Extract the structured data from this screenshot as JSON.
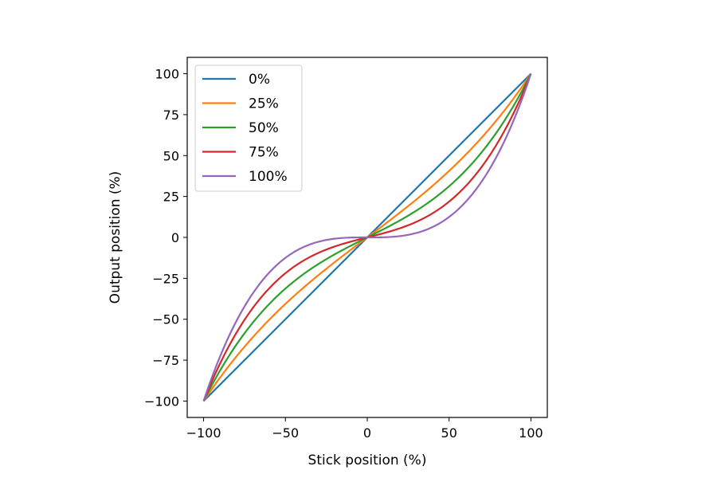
{
  "chart_data": {
    "type": "line",
    "xlabel": "Stick position (%)",
    "ylabel": "Output position (%)",
    "xlim": [
      -110,
      110
    ],
    "ylim": [
      -110,
      110
    ],
    "xticks": [
      -100,
      -50,
      0,
      50,
      100
    ],
    "yticks": [
      -100,
      -75,
      -50,
      -25,
      0,
      25,
      50,
      75,
      100
    ],
    "xtick_labels": [
      "−100",
      "−50",
      "0",
      "50",
      "100"
    ],
    "ytick_labels": [
      "−100",
      "−75",
      "−50",
      "−25",
      "0",
      "25",
      "50",
      "75",
      "100"
    ],
    "grid": false,
    "legend_position": "upper-left",
    "model": "output = (1 - k) * x + k * x^3 / 100^2",
    "x_range": [
      -100,
      100
    ],
    "series": [
      {
        "name": "0%",
        "expo": 0.0,
        "color": "#1f77b4"
      },
      {
        "name": "25%",
        "expo": 0.25,
        "color": "#ff7f0e"
      },
      {
        "name": "50%",
        "expo": 0.5,
        "color": "#2ca02c"
      },
      {
        "name": "75%",
        "expo": 0.75,
        "color": "#d62728"
      },
      {
        "name": "100%",
        "expo": 1.0,
        "color": "#9467bd"
      }
    ]
  }
}
